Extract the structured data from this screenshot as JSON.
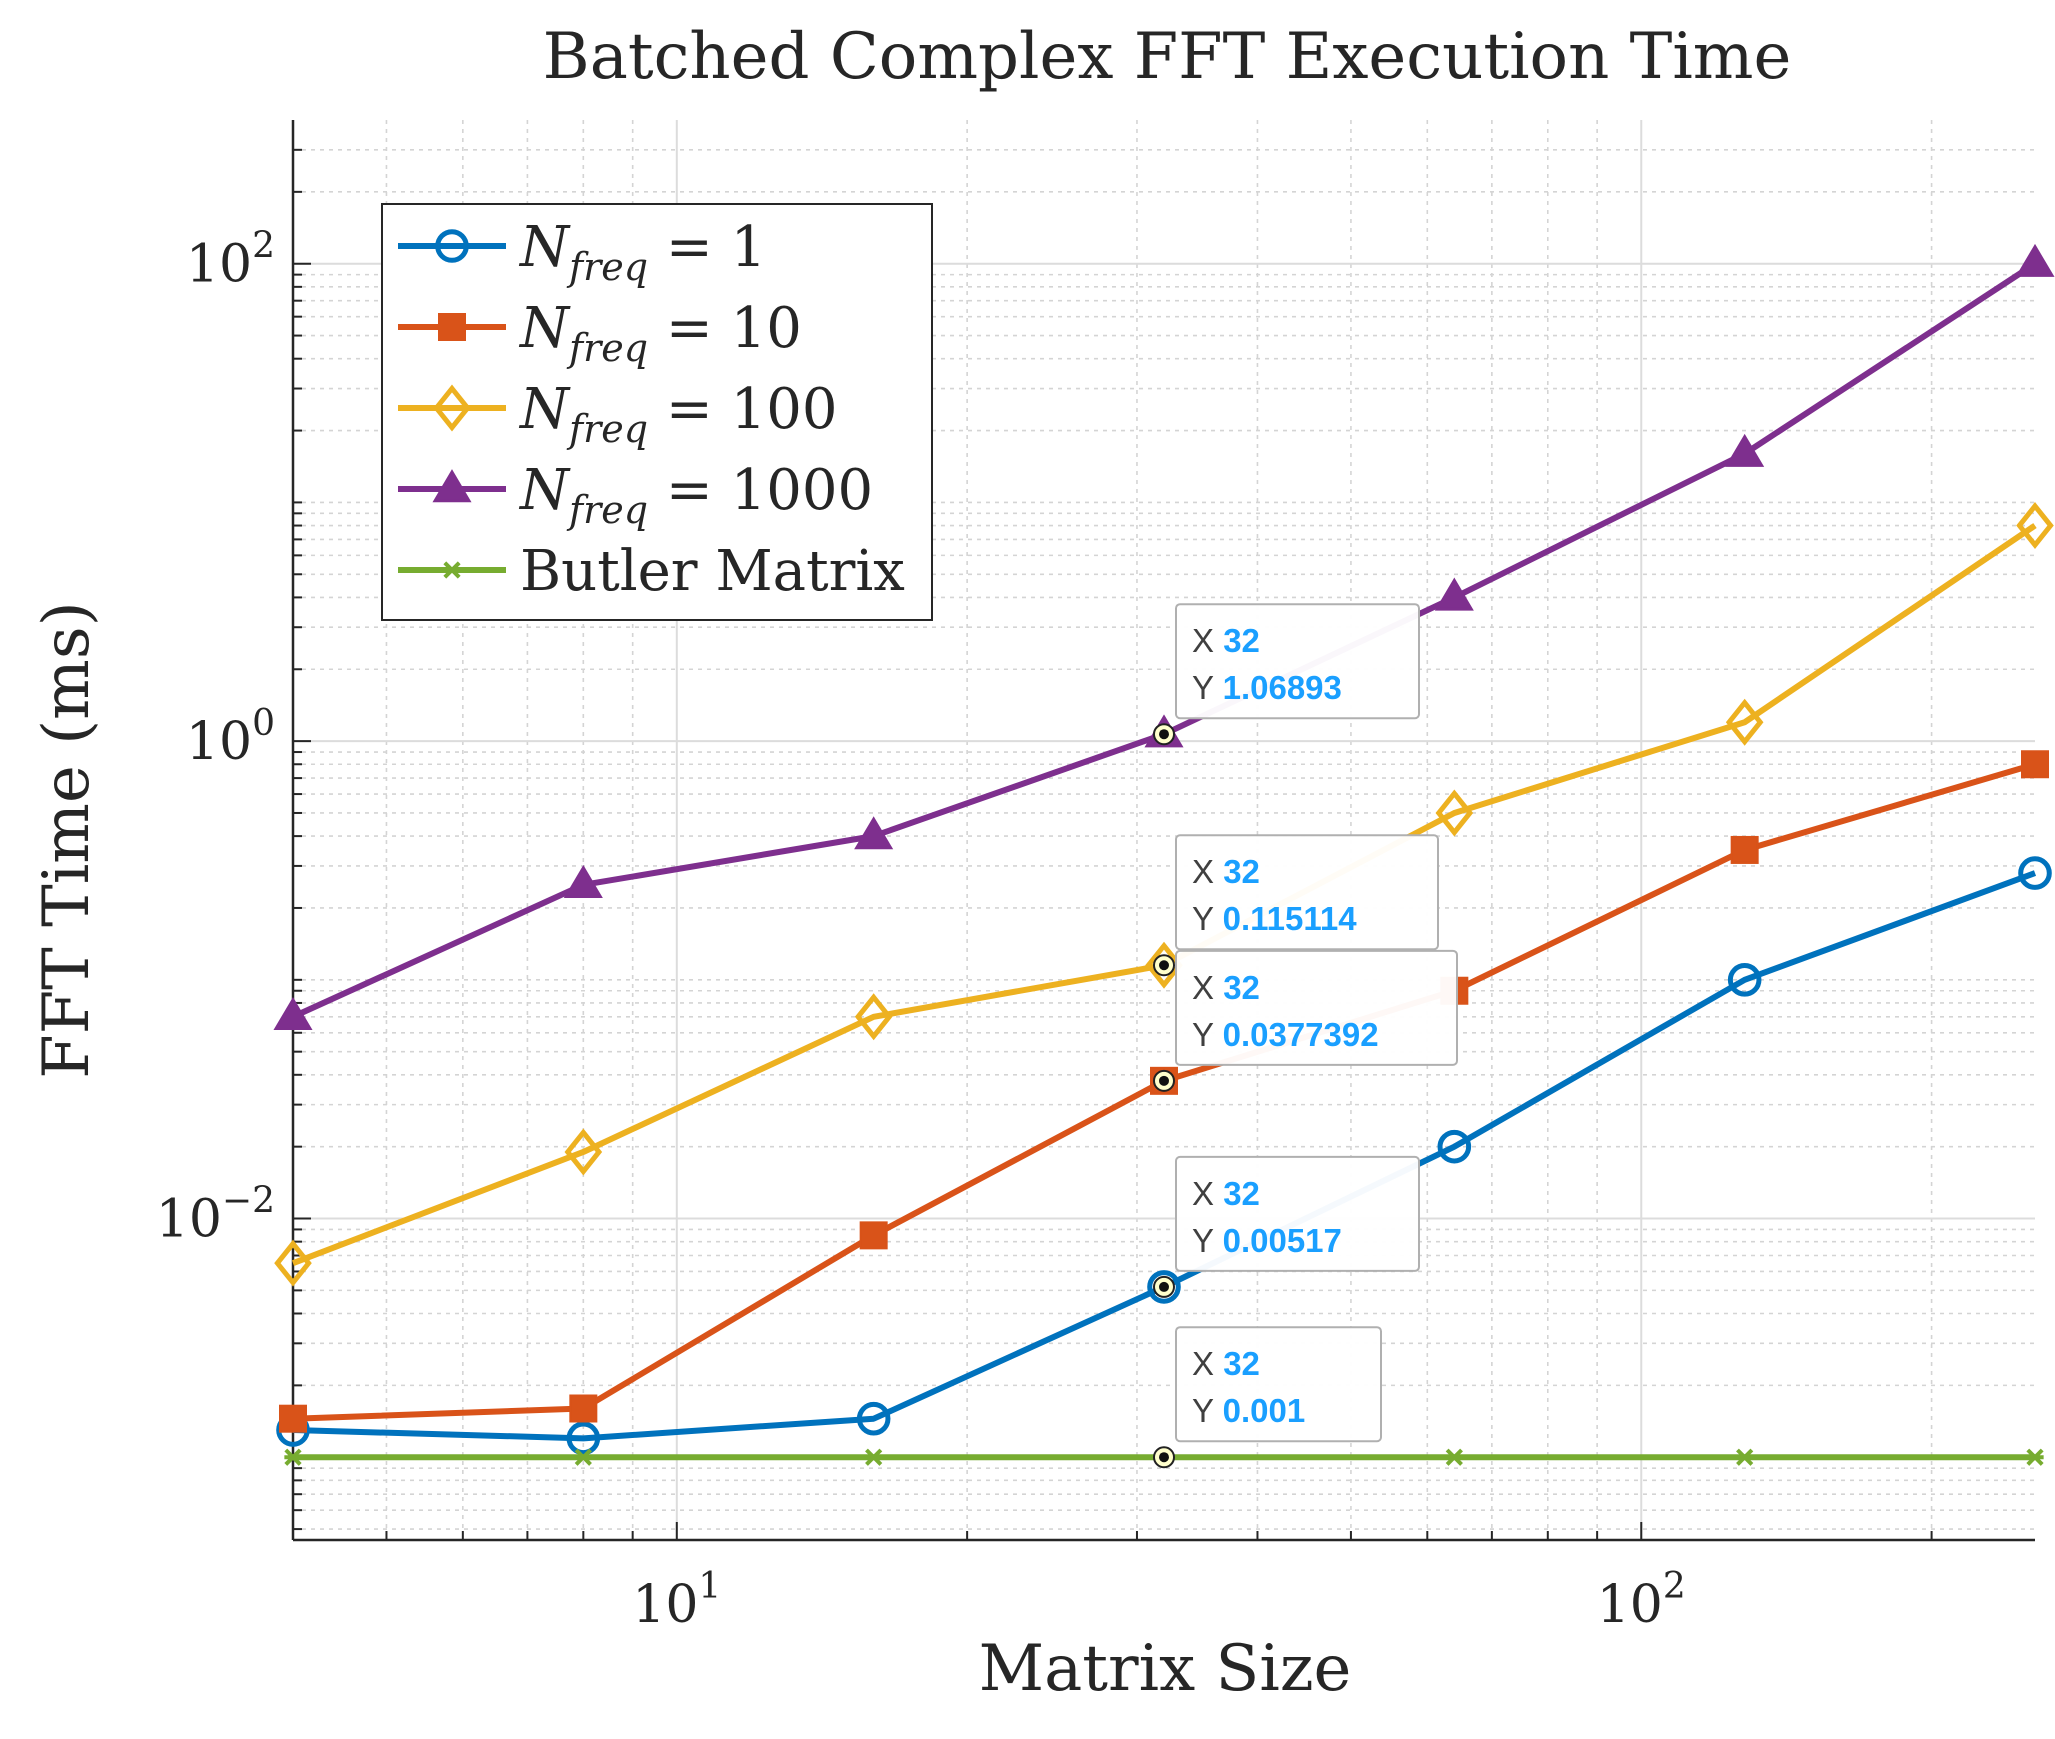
{
  "chart_data": {
    "type": "line",
    "title": "Batched Complex FFT Execution Time",
    "xlabel": "Matrix Size",
    "ylabel": "FFT Time (ms)",
    "x_scale": "log",
    "y_scale": "log",
    "xlim": [
      4,
      256
    ],
    "ylim": [
      0.00045,
      400
    ],
    "grid": true,
    "minor_grid": true,
    "legend_position": "top-left",
    "x": [
      4,
      8,
      16,
      32,
      64,
      128,
      256
    ],
    "x_ticks": [
      {
        "value": 10,
        "base": "10",
        "exp": "1"
      },
      {
        "value": 100,
        "base": "10",
        "exp": "2"
      }
    ],
    "y_ticks": [
      {
        "value": 0.01,
        "base": "10",
        "exp": "−2"
      },
      {
        "value": 1,
        "base": "10",
        "exp": "0"
      },
      {
        "value": 100,
        "base": "10",
        "exp": "2"
      }
    ],
    "series": [
      {
        "name_base": "N",
        "name_sub": "freq",
        "name_rest": " = 1",
        "color": "#0072BD",
        "marker": "circle",
        "values": [
          0.0013,
          0.0012,
          0.00145,
          0.00517,
          0.02,
          0.1,
          0.28
        ]
      },
      {
        "name_base": "N",
        "name_sub": "freq",
        "name_rest": " = 10",
        "color": "#D95319",
        "marker": "square",
        "values": [
          0.00145,
          0.0016,
          0.0085,
          0.0377392,
          0.09,
          0.35,
          0.8
        ]
      },
      {
        "name_base": "N",
        "name_sub": "freq",
        "name_rest": " = 100",
        "color": "#EDB120",
        "marker": "diamond",
        "values": [
          0.0065,
          0.019,
          0.07,
          0.115114,
          0.5,
          1.2,
          8
        ]
      },
      {
        "name_base": "N",
        "name_sub": "freq",
        "name_rest": " = 1000",
        "color": "#7E2F8E",
        "marker": "triangle",
        "values": [
          0.07,
          0.25,
          0.4,
          1.06893,
          4,
          16,
          100
        ]
      },
      {
        "name_base": "Butler Matrix",
        "name_sub": "",
        "name_rest": "",
        "color": "#77AC30",
        "marker": "asterisk",
        "values": [
          0.001,
          0.001,
          0.001,
          0.001,
          0.001,
          0.001,
          0.001
        ]
      }
    ],
    "datatips": [
      {
        "series": 3,
        "x_label": "X",
        "x_value": "32",
        "y_label": "Y",
        "y_value": "1.06893"
      },
      {
        "series": 2,
        "x_label": "X",
        "x_value": "32",
        "y_label": "Y",
        "y_value": "0.115114"
      },
      {
        "series": 1,
        "x_label": "X",
        "x_value": "32",
        "y_label": "Y",
        "y_value": "0.0377392"
      },
      {
        "series": 0,
        "x_label": "X",
        "x_value": "32",
        "y_label": "Y",
        "y_value": "0.00517"
      },
      {
        "series": 4,
        "x_label": "X",
        "x_value": "32",
        "y_label": "Y",
        "y_value": "0.001"
      }
    ]
  }
}
